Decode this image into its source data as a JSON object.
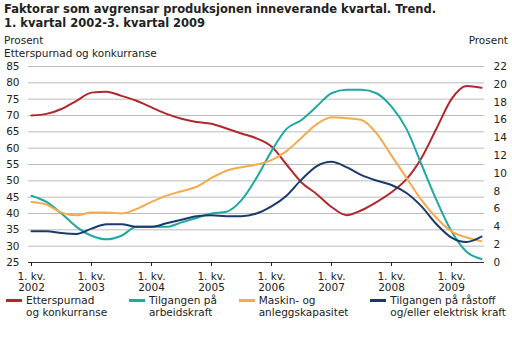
{
  "chart_data": {
    "type": "line",
    "title": "Faktorar som avgrensar produksjonen inneverande kvartal. Trend.\n1. kvartal 2002-3. kvartal 2009",
    "y_label": "Prosent\nEtterspurnad og konkurranse",
    "y2_label": "Prosent",
    "categories": [
      "1. kv.\n2002",
      null,
      null,
      null,
      "1. kv.\n2003",
      null,
      null,
      null,
      "1. kv.\n2004",
      null,
      null,
      null,
      "1. kv.\n2005",
      null,
      null,
      null,
      "1. kv.\n2006",
      null,
      null,
      null,
      "1. kv.\n2007",
      null,
      null,
      null,
      "1. kv.\n2008",
      null,
      null,
      null,
      "1. kv.\n2009",
      null,
      null
    ],
    "series": [
      {
        "name": "Etterspurnad\nog konkurranse",
        "color": "#b0282e",
        "axis": "y",
        "values": [
          70,
          70.5,
          72,
          74.5,
          77,
          77.3,
          76,
          74.5,
          72.5,
          70.5,
          69,
          68,
          67.5,
          66,
          64.5,
          63,
          60.5,
          55,
          49.5,
          46,
          42,
          39.5,
          41,
          43.5,
          46.5,
          50.5,
          57,
          66,
          75,
          79,
          78.5
        ]
      },
      {
        "name": "Tilgangen på\narbeidskraft",
        "color": "#1ea9a2",
        "axis": "y2",
        "values": [
          7.5,
          6.8,
          5.5,
          4,
          3,
          2.6,
          3,
          4,
          4,
          4,
          4.5,
          5,
          5.5,
          5.7,
          7,
          9.5,
          12.5,
          15,
          16,
          17.5,
          19,
          19.4,
          19.4,
          19,
          17.5,
          15,
          11,
          7,
          3.5,
          1.2,
          0.4
        ]
      },
      {
        "name": "Maskin- og\nanleggskapasitet",
        "color": "#f5aa4c",
        "axis": "y2",
        "values": [
          6.8,
          6.5,
          5.6,
          5.3,
          5.6,
          5.6,
          5.5,
          6,
          6.8,
          7.5,
          8,
          8.5,
          9.5,
          10.3,
          10.7,
          11,
          11.5,
          12.5,
          14,
          15.5,
          16.3,
          16.2,
          16,
          14.5,
          12,
          9.5,
          7,
          5,
          3.5,
          2.8,
          2.4
        ]
      },
      {
        "name": "Tilgangen på råstoff\nog/eller elektrisk kraft",
        "color": "#1b3a6b",
        "axis": "y2",
        "values": [
          3.5,
          3.5,
          3.3,
          3.2,
          3.8,
          4.3,
          4.3,
          4,
          4,
          4.4,
          4.8,
          5.2,
          5.3,
          5.2,
          5.2,
          5.5,
          6.3,
          7.5,
          9.3,
          10.8,
          11.3,
          10.7,
          9.8,
          9.2,
          8.7,
          7.8,
          6.3,
          4.3,
          2.8,
          2.3,
          2.9
        ]
      }
    ],
    "ylim": [
      25,
      85
    ],
    "yticks": [
      25,
      30,
      35,
      40,
      45,
      50,
      55,
      60,
      65,
      70,
      75,
      80,
      85
    ],
    "y2lim": [
      0,
      22
    ],
    "y2ticks": [
      0,
      2,
      4,
      6,
      8,
      10,
      12,
      14,
      16,
      18,
      20,
      22
    ],
    "grid": true,
    "legend": "bottom"
  }
}
